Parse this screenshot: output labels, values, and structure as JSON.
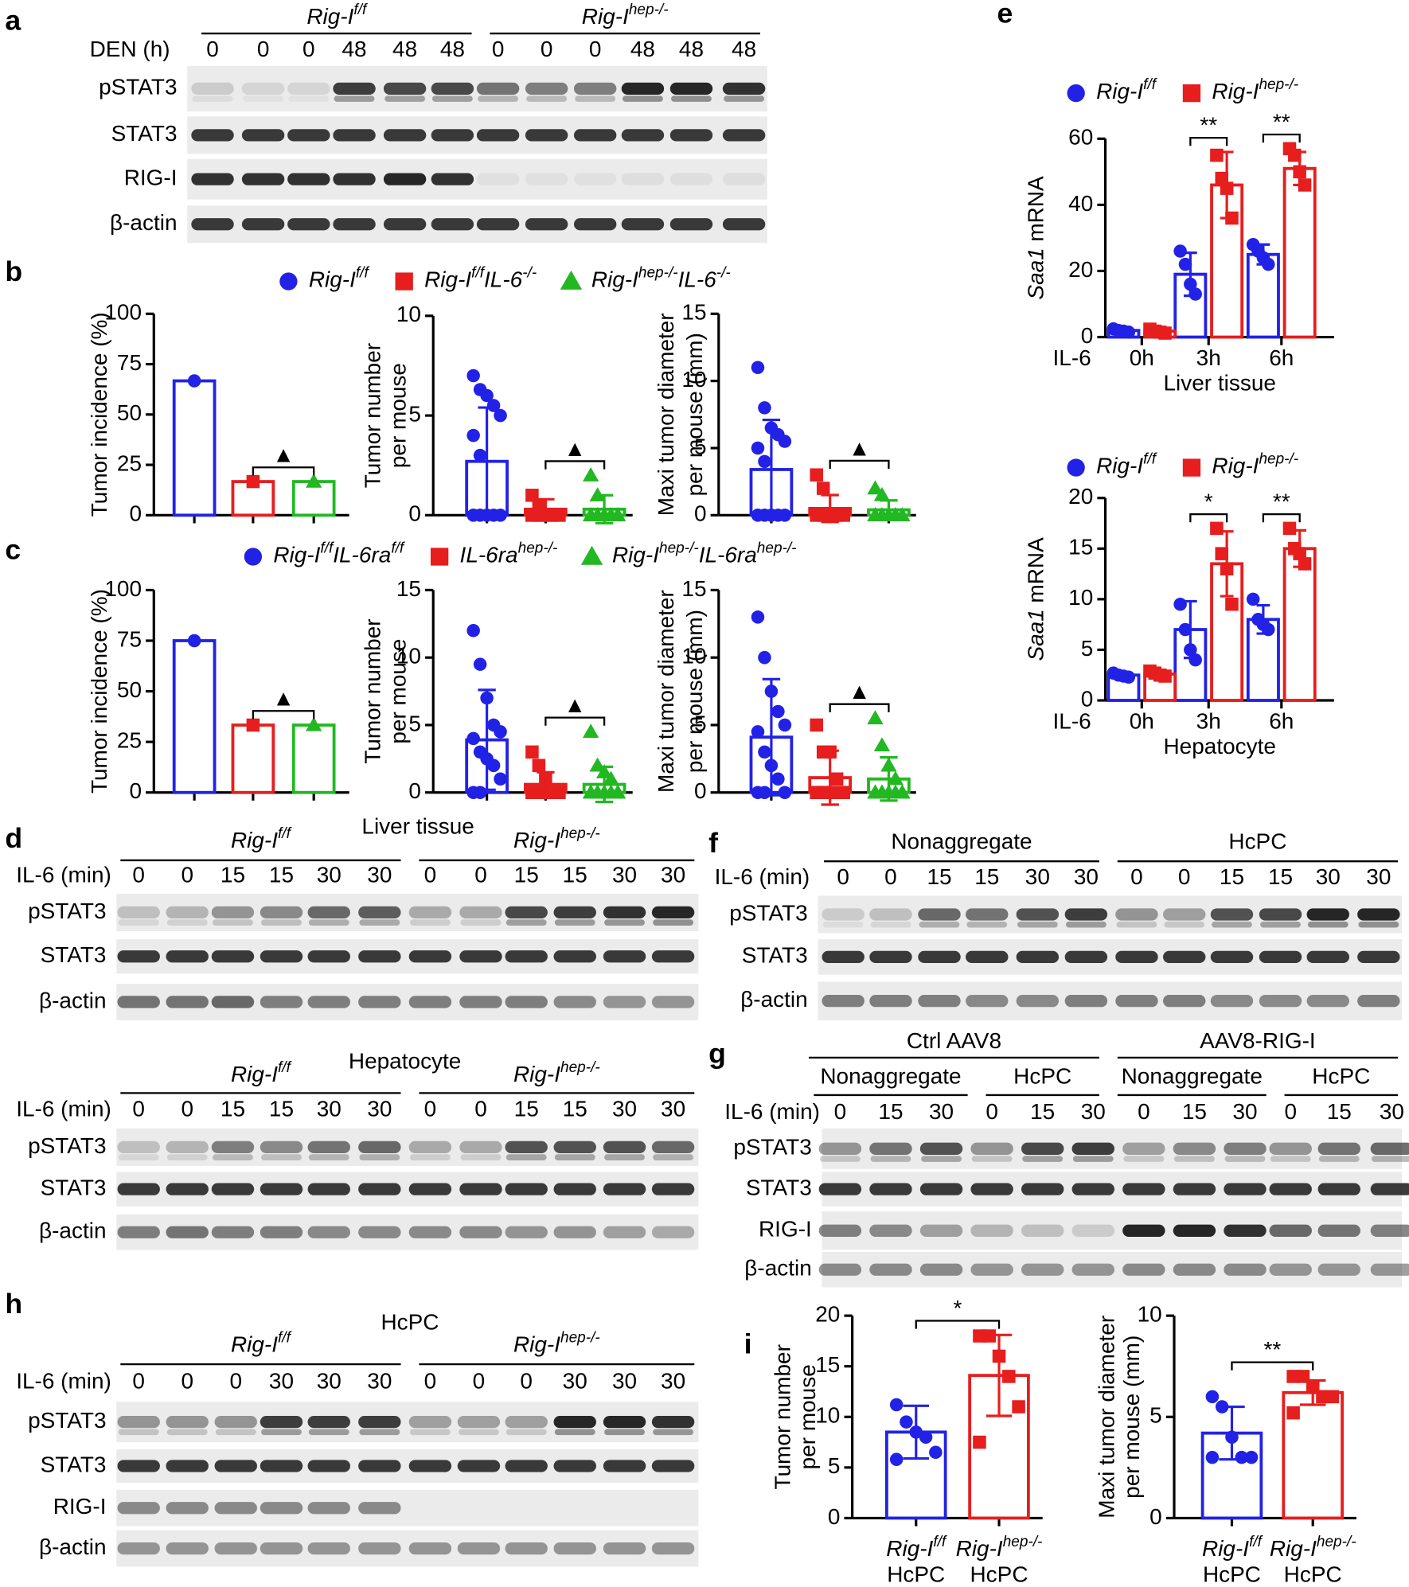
{
  "blots": [
    {
      "letter": "a",
      "groups": [
        {
          "name": [
            "Rig-I",
            "f/f"
          ],
          "italic": true
        },
        {
          "name": [
            "Rig-I",
            "hep-/-"
          ],
          "italic": true
        }
      ],
      "lane_label": "DEN (h)",
      "lanes": [
        0,
        0,
        0,
        48,
        48,
        48,
        0,
        0,
        0,
        48,
        48,
        48
      ],
      "rows": [
        "pSTAT3",
        "STAT3",
        "RIG-I",
        "β-actin"
      ]
    },
    {
      "letter": "d",
      "title": "Liver tissue",
      "groups": [
        {
          "name": [
            "Rig-I",
            "f/f"
          ],
          "italic": true
        },
        {
          "name": [
            "Rig-I",
            "hep-/-"
          ],
          "italic": true
        }
      ],
      "lane_label": "IL-6 (min)",
      "lanes": [
        0,
        0,
        15,
        15,
        30,
        30,
        0,
        0,
        15,
        15,
        30,
        30
      ],
      "rows": [
        "pSTAT3",
        "STAT3",
        "β-actin"
      ]
    },
    {
      "title": "Hepatocyte",
      "groups": [
        {
          "name": [
            "Rig-I",
            "f/f"
          ],
          "italic": true
        },
        {
          "name": [
            "Rig-I",
            "hep-/-"
          ],
          "italic": true
        }
      ],
      "lane_label": "IL-6 (min)",
      "lanes": [
        0,
        0,
        15,
        15,
        30,
        30,
        0,
        0,
        15,
        15,
        30,
        30
      ],
      "rows": [
        "pSTAT3",
        "STAT3",
        "β-actin"
      ]
    },
    {
      "letter": "f",
      "groups": [
        {
          "name": [
            "Nonaggregate"
          ]
        },
        {
          "name": [
            "HcPC"
          ]
        }
      ],
      "lane_label": "IL-6 (min)",
      "lanes": [
        0,
        0,
        15,
        15,
        30,
        30,
        0,
        0,
        15,
        15,
        30,
        30
      ],
      "rows": [
        "pSTAT3",
        "STAT3",
        "β-actin"
      ]
    },
    {
      "letter": "g",
      "groups": [
        {
          "name": [
            "Ctrl AAV8"
          ]
        },
        {
          "name": [
            "AAV8-RIG-I"
          ]
        }
      ],
      "subgroups": [
        {
          "name": [
            "Nonaggregate"
          ]
        },
        {
          "name": [
            "HcPC"
          ]
        },
        {
          "name": [
            "Nonaggregate"
          ]
        },
        {
          "name": [
            "HcPC"
          ]
        }
      ],
      "lane_label": "IL-6 (min)",
      "lanes": [
        0,
        15,
        30,
        0,
        15,
        30,
        0,
        15,
        30,
        0,
        15,
        30
      ],
      "rows": [
        "pSTAT3",
        "STAT3",
        "RIG-I",
        "β-actin"
      ]
    },
    {
      "letter": "h",
      "title": "HcPC",
      "groups": [
        {
          "name": [
            "Rig-I",
            "f/f"
          ],
          "italic": true
        },
        {
          "name": [
            "Rig-I",
            "hep-/-"
          ],
          "italic": true
        }
      ],
      "lane_label": "IL-6 (min)",
      "lanes": [
        0,
        0,
        0,
        30,
        30,
        30,
        0,
        0,
        0,
        30,
        30,
        30
      ],
      "rows": [
        "pSTAT3",
        "STAT3",
        "RIG-I",
        "β-actin"
      ]
    }
  ],
  "chart_data": [
    {
      "type": "bar",
      "letter": "b",
      "legend": {
        "names": [
          [
            "Rig-I",
            "f/f"
          ],
          [
            "Rig-I",
            "f/f",
            "IL-6",
            "-/-"
          ],
          [
            "Rig-I",
            "hep-/-",
            "IL-6",
            "-/-"
          ]
        ],
        "colors": [
          "#2222e6",
          "#e61e1e",
          "#22b822"
        ],
        "markers": [
          "circle",
          "square",
          "triangle"
        ]
      },
      "ylabel": [
        "Tumor incidence (%)"
      ],
      "categories": [
        null,
        null,
        null
      ],
      "values": [
        66.7,
        16.7,
        16.7
      ],
      "colors": [
        "#2222e6",
        "#e61e1e",
        "#22b822"
      ],
      "markers": [
        "circle",
        "square",
        "triangle"
      ],
      "ylim": [
        0,
        100
      ],
      "yticks": [
        0,
        25,
        50,
        75,
        100
      ],
      "significance": [
        {
          "from": 1,
          "to": 2,
          "label": "▲"
        }
      ]
    },
    {
      "type": "bar",
      "ylabel": [
        "Tumor number",
        "per mouse"
      ],
      "categories": [
        null,
        null,
        null
      ],
      "values": [
        2.7,
        0.3,
        0.3
      ],
      "errors": [
        2.7,
        0.5,
        0.7
      ],
      "points": [
        [
          7,
          6.3,
          6,
          5.5,
          5,
          4,
          3,
          0,
          0,
          0,
          0,
          0
        ],
        [
          1,
          0.5,
          0,
          0,
          0,
          0,
          0,
          0,
          0,
          0,
          0,
          0
        ],
        [
          2,
          1,
          0,
          0,
          0,
          0,
          0,
          0,
          0,
          0,
          0,
          0
        ]
      ],
      "colors": [
        "#2222e6",
        "#e61e1e",
        "#22b822"
      ],
      "markers": [
        "circle",
        "square",
        "triangle"
      ],
      "ylim": [
        0,
        10
      ],
      "yticks": [
        0,
        5,
        10
      ],
      "significance": [
        {
          "from": 1,
          "to": 2,
          "label": "▲"
        }
      ]
    },
    {
      "type": "bar",
      "ylabel": [
        "Maxi tumor diameter",
        "per mouse (mm)"
      ],
      "categories": [
        null,
        null,
        null
      ],
      "values": [
        3.4,
        0.5,
        0.4
      ],
      "errors": [
        3.7,
        1,
        0.7
      ],
      "points": [
        [
          11,
          8,
          6.5,
          6,
          5.5,
          5,
          4,
          0,
          0,
          0,
          0,
          0
        ],
        [
          3,
          2,
          0,
          0,
          0,
          0,
          0,
          0,
          0,
          0,
          0,
          0
        ],
        [
          2,
          1.5,
          0,
          0,
          0,
          0,
          0,
          0,
          0,
          0,
          0,
          0
        ]
      ],
      "colors": [
        "#2222e6",
        "#e61e1e",
        "#22b822"
      ],
      "markers": [
        "circle",
        "square",
        "triangle"
      ],
      "ylim": [
        0,
        15
      ],
      "yticks": [
        0,
        5,
        10,
        15
      ],
      "significance": [
        {
          "from": 1,
          "to": 2,
          "label": "▲"
        }
      ]
    },
    {
      "type": "bar",
      "letter": "c",
      "legend": {
        "names": [
          [
            "Rig-I",
            "f/f",
            "IL-6ra",
            "f/f"
          ],
          [
            "IL-6ra",
            "hep-/-"
          ],
          [
            "Rig-I",
            "hep-/-",
            "IL-6ra",
            "hep-/-"
          ]
        ],
        "colors": [
          "#2222e6",
          "#e61e1e",
          "#22b822"
        ],
        "markers": [
          "circle",
          "square",
          "triangle"
        ]
      },
      "ylabel": [
        "Tumor incidence (%)"
      ],
      "categories": [
        null,
        null,
        null
      ],
      "values": [
        75,
        33.3,
        33.3
      ],
      "colors": [
        "#2222e6",
        "#e61e1e",
        "#22b822"
      ],
      "markers": [
        "circle",
        "square",
        "triangle"
      ],
      "ylim": [
        0,
        100
      ],
      "yticks": [
        0,
        25,
        50,
        75,
        100
      ],
      "significance": [
        {
          "from": 1,
          "to": 2,
          "label": "▲"
        }
      ]
    },
    {
      "type": "bar",
      "ylabel": [
        "Tumor number",
        "per mouse"
      ],
      "categories": [
        null,
        null,
        null
      ],
      "values": [
        3.9,
        0.6,
        0.6
      ],
      "errors": [
        3.7,
        0.9,
        1.3
      ],
      "points": [
        [
          12,
          9.5,
          7,
          5,
          4.5,
          4,
          3,
          2.5,
          2,
          1,
          0,
          0
        ],
        [
          3,
          2,
          1,
          0,
          0,
          0,
          0,
          0,
          0,
          0,
          0,
          0
        ],
        [
          4.5,
          2,
          1.5,
          1,
          0,
          0,
          0,
          0,
          0,
          0,
          0,
          0
        ]
      ],
      "colors": [
        "#2222e6",
        "#e61e1e",
        "#22b822"
      ],
      "markers": [
        "circle",
        "square",
        "triangle"
      ],
      "ylim": [
        0,
        15
      ],
      "yticks": [
        0,
        5,
        10,
        15
      ],
      "significance": [
        {
          "from": 1,
          "to": 2,
          "label": "▲"
        }
      ]
    },
    {
      "type": "bar",
      "ylabel": [
        "Maxi tumor diameter",
        "per mouse (mm)"
      ],
      "categories": [
        null,
        null,
        null
      ],
      "values": [
        4.1,
        1.1,
        1.0
      ],
      "errors": [
        4.3,
        2,
        1.6
      ],
      "points": [
        [
          13,
          10,
          7.5,
          6,
          5,
          4.5,
          3,
          2,
          1,
          0,
          0,
          0
        ],
        [
          5,
          3,
          3,
          1,
          0,
          0,
          0,
          0,
          0,
          0,
          0,
          0
        ],
        [
          5.5,
          3.5,
          2,
          1,
          0,
          0,
          0,
          0,
          0,
          0,
          0,
          0
        ]
      ],
      "colors": [
        "#2222e6",
        "#e61e1e",
        "#22b822"
      ],
      "markers": [
        "circle",
        "square",
        "triangle"
      ],
      "ylim": [
        0,
        15
      ],
      "yticks": [
        0,
        5,
        10,
        15
      ],
      "significance": [
        {
          "from": 1,
          "to": 2,
          "label": "▲"
        }
      ]
    },
    {
      "type": "grouped_bar",
      "letter": "e",
      "ylabel_gene": "Saa1",
      "ylabel": [
        "mRNA"
      ],
      "xrow_label": "IL-6",
      "categories": [
        "0h",
        "3h",
        "6h"
      ],
      "xlabel": "Liver tissue",
      "series": [
        {
          "name": [
            "Rig-I",
            "f/f"
          ],
          "color": "#2222e6",
          "marker": "circle",
          "values": [
            2,
            19,
            25
          ],
          "errors": [
            0.6,
            6.5,
            3
          ],
          "points": [
            [
              2.5,
              2,
              1.8,
              1.5
            ],
            [
              26,
              22,
              16,
              13
            ],
            [
              28,
              26,
              24,
              22
            ]
          ]
        },
        {
          "name": [
            "Rig-I",
            "hep-/-"
          ],
          "color": "#e61e1e",
          "marker": "square",
          "values": [
            1.8,
            46,
            51
          ],
          "errors": [
            0.6,
            10,
            5
          ],
          "points": [
            [
              2.4,
              1.8,
              1.5,
              1.2
            ],
            [
              55,
              48,
              45,
              36
            ],
            [
              57,
              55,
              50,
              46
            ]
          ]
        }
      ],
      "ylim": [
        0,
        60
      ],
      "yticks": [
        0,
        20,
        40,
        60
      ],
      "significance": [
        {
          "category": 1,
          "label": "**"
        },
        {
          "category": 2,
          "label": "**"
        }
      ]
    },
    {
      "type": "grouped_bar",
      "ylabel_gene": "Saa1",
      "ylabel": [
        "mRNA"
      ],
      "xrow_label": "IL-6",
      "categories": [
        "0h",
        "3h",
        "6h"
      ],
      "xlabel": "Hepatocyte",
      "series": [
        {
          "name": [
            "Rig-I",
            "f/f"
          ],
          "color": "#2222e6",
          "marker": "circle",
          "values": [
            2.5,
            7,
            8
          ],
          "errors": [
            0.3,
            2.8,
            1.4
          ],
          "points": [
            [
              2.7,
              2.5,
              2.4,
              2.3
            ],
            [
              9.5,
              7,
              5,
              4
            ],
            [
              10,
              8,
              7.5,
              7
            ]
          ]
        },
        {
          "name": [
            "Rig-I",
            "hep-/-"
          ],
          "color": "#e61e1e",
          "marker": "square",
          "values": [
            2.6,
            13.5,
            15
          ],
          "errors": [
            0.4,
            3.2,
            1.8
          ],
          "points": [
            [
              2.9,
              2.7,
              2.5,
              2.4
            ],
            [
              17,
              14.5,
              13,
              9.5
            ],
            [
              17,
              15,
              14.5,
              13.5
            ]
          ]
        }
      ],
      "ylim": [
        0,
        20
      ],
      "yticks": [
        0,
        5,
        10,
        15,
        20
      ],
      "significance": [
        {
          "category": 1,
          "label": "*"
        },
        {
          "category": 2,
          "label": "**"
        }
      ]
    },
    {
      "type": "bar",
      "letter": "i",
      "ylabel": [
        "Tumor number",
        "per mouse"
      ],
      "categories": [
        [
          "Rig-I",
          "f/f"
        ],
        [
          "Rig-I",
          "hep-/-"
        ]
      ],
      "category_sublabels": [
        "HcPC",
        "HcPC"
      ],
      "values": [
        8.5,
        14.1
      ],
      "errors": [
        2.6,
        4
      ],
      "points": [
        [
          11.2,
          9.5,
          8.5,
          8,
          6.5,
          5.8
        ],
        [
          18,
          18,
          16,
          14,
          11,
          7.5
        ]
      ],
      "colors": [
        "#2222e6",
        "#e61e1e"
      ],
      "markers": [
        "circle",
        "square"
      ],
      "ylim": [
        0,
        20
      ],
      "yticks": [
        0,
        5,
        10,
        15,
        20
      ],
      "significance": [
        {
          "from": 0,
          "to": 1,
          "label": "*"
        }
      ]
    },
    {
      "type": "bar",
      "ylabel": [
        "Maxi tumor diameter",
        "per mouse (mm)"
      ],
      "categories": [
        [
          "Rig-I",
          "f/f"
        ],
        [
          "Rig-I",
          "hep-/-"
        ]
      ],
      "category_sublabels": [
        "HcPC",
        "HcPC"
      ],
      "values": [
        4.2,
        6.2
      ],
      "errors": [
        1.3,
        0.6
      ],
      "points": [
        [
          6,
          5.5,
          4,
          3,
          3,
          3
        ],
        [
          7,
          7,
          6.5,
          6,
          6,
          5.2
        ]
      ],
      "colors": [
        "#2222e6",
        "#e61e1e"
      ],
      "markers": [
        "circle",
        "square"
      ],
      "ylim": [
        0,
        10
      ],
      "yticks": [
        0,
        5,
        10
      ],
      "significance": [
        {
          "from": 0,
          "to": 1,
          "label": "**"
        }
      ]
    }
  ]
}
